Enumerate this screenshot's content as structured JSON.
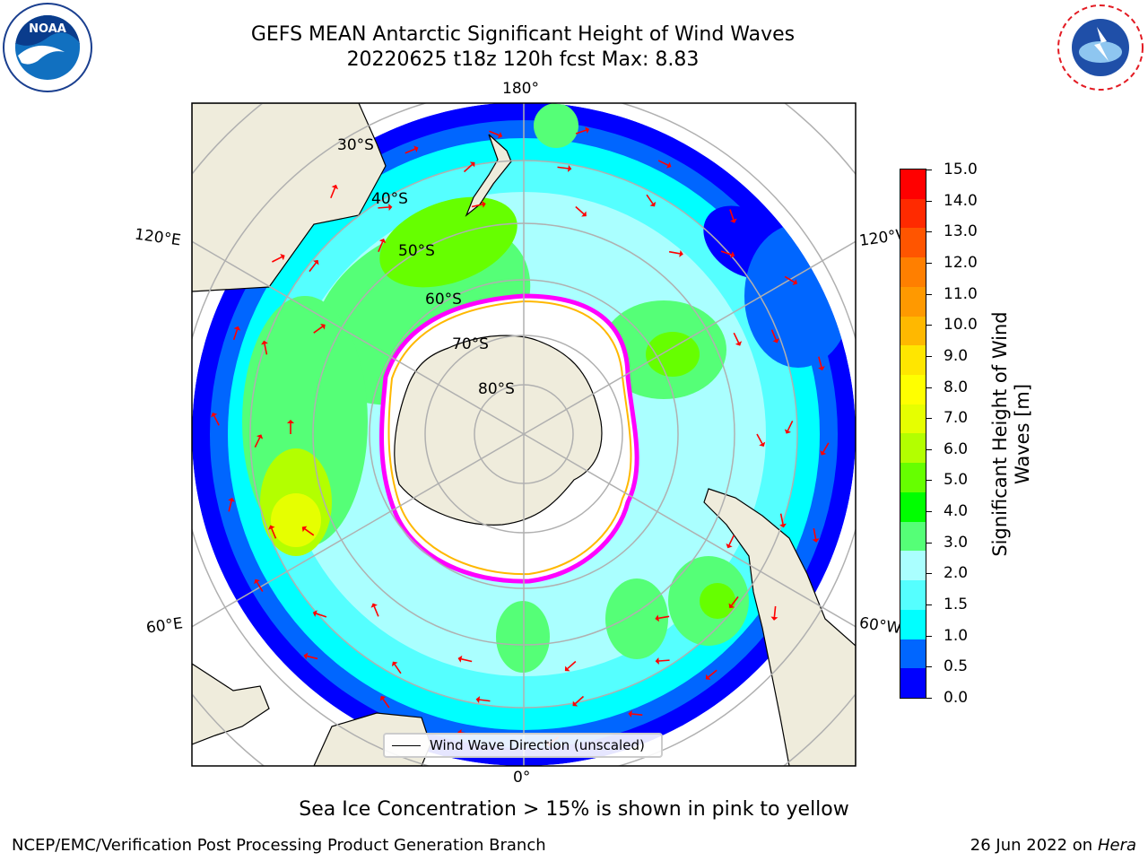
{
  "header": {
    "title_line1": "GEFS MEAN Antarctic Significant Height of Wind Waves",
    "title_line2": "20220625 t18z 120h fcst   Max: 8.83"
  },
  "logos": {
    "left": "NOAA",
    "right": "NATIONAL WEATHER SERVICE"
  },
  "map": {
    "projection": "south-polar-stereographic",
    "meridian_labels": {
      "top": "180°",
      "bottom": "0°",
      "left_upper": "120°E",
      "left_lower": "60°E",
      "right_upper": "120°W",
      "right_lower": "60°W"
    },
    "latitude_labels": [
      "30°S",
      "40°S",
      "50°S",
      "60°S",
      "70°S",
      "80°S"
    ],
    "legend_label": "Wind Wave Direction (unscaled)",
    "colors": {
      "land": "#efecdc",
      "ice": "#ffffff",
      "ice_edge": "#ff00ff",
      "arrow": "#ff0000",
      "grid": "#b0b0b0"
    }
  },
  "colorbar": {
    "title_line1": "Significant Height of Wind",
    "title_line2": "Waves [m]",
    "ticks": [
      "15.0",
      "14.0",
      "13.0",
      "12.0",
      "11.0",
      "10.0",
      "9.0",
      "8.0",
      "7.0",
      "6.0",
      "5.0",
      "4.0",
      "3.0",
      "2.0",
      "1.5",
      "1.0",
      "0.5",
      "0.0"
    ],
    "colors_top_to_bottom": [
      "#ff0000",
      "#ff2a00",
      "#ff5500",
      "#ff7f00",
      "#ff9900",
      "#ffb800",
      "#ffe600",
      "#ffff00",
      "#e6ff00",
      "#b3ff00",
      "#66ff00",
      "#00ff00",
      "#55ff77",
      "#aaffff",
      "#55ffff",
      "#00ffff",
      "#0066ff",
      "#0000ff"
    ]
  },
  "footer": {
    "sea_ice_note": "Sea Ice Concentration > 15% is shown in pink to yellow",
    "credit": "NCEP/EMC/Verification Post Processing Product Generation Branch",
    "date": "26 Jun 2022 on",
    "host": "Hera"
  }
}
